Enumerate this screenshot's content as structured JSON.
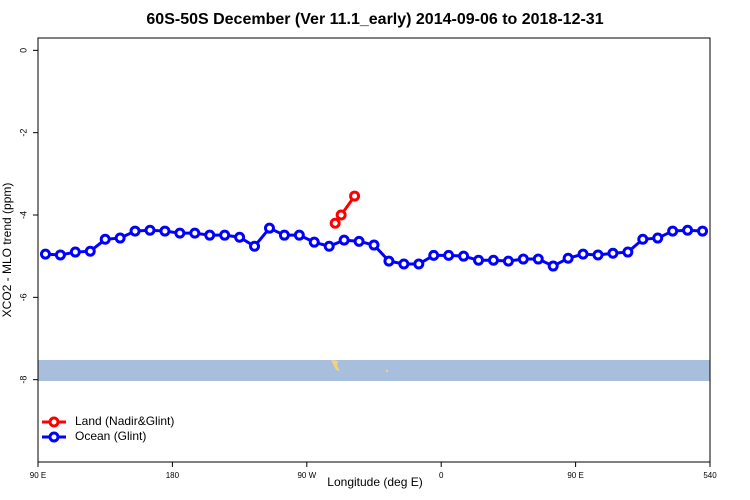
{
  "chart_data": {
    "type": "line",
    "title": "60S-50S December (Ver 11.1_early)   2014-09-06 to 2018-12-31",
    "x_label": "Longitude (deg E)",
    "y_label": "XCO2 - MLO trend (ppm)",
    "xlim": [
      90,
      540
    ],
    "xticks": [
      {
        "value": 90,
        "label": "90 E"
      },
      180,
      {
        "value": 270,
        "label": "90 W"
      },
      {
        "value": 360,
        "label": "0"
      },
      {
        "value": 450,
        "label": "90 E"
      },
      540
    ],
    "ylim": [
      -10,
      0.3
    ],
    "yticks": [
      0,
      -2,
      -4,
      -6,
      -8
    ],
    "legend": "bottomleft",
    "series": [
      {
        "name": "Land (Nadir&Glint)",
        "color": "#ff0000",
        "x": [
          289,
          293,
          302
        ],
        "values": [
          -4.2,
          -4.0,
          -3.54
        ]
      },
      {
        "name": "Ocean (Glint)",
        "color": "#0000ff",
        "x": [
          95,
          105,
          115,
          125,
          135,
          145,
          155,
          165,
          175,
          185,
          195,
          205,
          215,
          225,
          235,
          245,
          255,
          265,
          275,
          285,
          295,
          305,
          315,
          325,
          335,
          345,
          355,
          365,
          375,
          385,
          395,
          405,
          415,
          425,
          435,
          445,
          455,
          465,
          475,
          485,
          495,
          505,
          515,
          525,
          535
        ],
        "values": [
          -4.95,
          -4.97,
          -4.9,
          -4.88,
          -4.59,
          -4.56,
          -4.39,
          -4.37,
          -4.39,
          -4.44,
          -4.44,
          -4.49,
          -4.49,
          -4.54,
          -4.76,
          -4.32,
          -4.49,
          -4.49,
          -4.66,
          -4.76,
          -4.61,
          -4.64,
          -4.73,
          -5.12,
          -5.19,
          -5.19,
          -4.98,
          -4.98,
          -5.0,
          -5.1,
          -5.1,
          -5.12,
          -5.07,
          -5.07,
          -5.24,
          -5.05,
          -4.95,
          -4.97,
          -4.93,
          -4.9,
          -4.59,
          -4.56,
          -4.39,
          -4.37,
          -4.39
        ]
      }
    ]
  }
}
